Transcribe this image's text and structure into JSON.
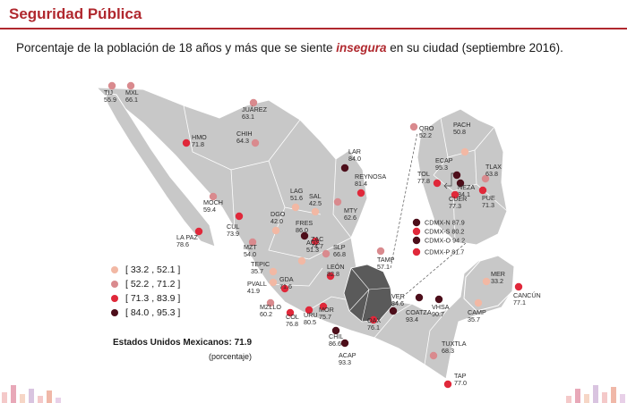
{
  "header": {
    "title": "Seguridad Pública"
  },
  "subtitle": {
    "before": "Porcentaje de la población de 18 años y más que se siente ",
    "emphasis": "insegura",
    "after": " en su ciudad (septiembre 2016)."
  },
  "colors": {
    "accent": "#b0282e",
    "c1": "#f2b8a4",
    "c2": "#d98a8e",
    "c3": "#e0283a",
    "c4": "#4d0e1a",
    "land": "#c8c8c8",
    "region": "#5a5a5a"
  },
  "legend": [
    {
      "label": "[ 33.2 , 52.1 ]",
      "color": "#f2b8a4"
    },
    {
      "label": "[ 52.2 , 71.2 ]",
      "color": "#d98a8e"
    },
    {
      "label": "[ 71.3 , 83.9 ]",
      "color": "#e0283a"
    },
    {
      "label": "[ 84.0 , 95.3 ]",
      "color": "#4d0e1a"
    }
  ],
  "national": {
    "label": "Estados Unidos Mexicanos: 71.9",
    "unit": "(porcentaje)"
  },
  "cities": [
    {
      "name": "TIJ",
      "value": "55.9",
      "cls": 2
    },
    {
      "name": "MXL",
      "value": "66.1",
      "cls": 2
    },
    {
      "name": "JUÁREZ",
      "value": "63.1",
      "cls": 2
    },
    {
      "name": "HMO",
      "value": "71.8",
      "cls": 3
    },
    {
      "name": "CHIH",
      "value": "64.3",
      "cls": 2
    },
    {
      "name": "LAR",
      "value": "84.0",
      "cls": 4
    },
    {
      "name": "REYNOSA",
      "value": "81.4",
      "cls": 3
    },
    {
      "name": "MOCH",
      "value": "59.4",
      "cls": 2
    },
    {
      "name": "LAG",
      "value": "51.6",
      "cls": 1
    },
    {
      "name": "SAL",
      "value": "42.5",
      "cls": 1
    },
    {
      "name": "DGO",
      "value": "42.0",
      "cls": 1
    },
    {
      "name": "MTY",
      "value": "62.6",
      "cls": 2
    },
    {
      "name": "CUL",
      "value": "73.9",
      "cls": 3
    },
    {
      "name": "FRES",
      "value": "86.0",
      "cls": 4
    },
    {
      "name": "LA PAZ",
      "value": "78.6",
      "cls": 3
    },
    {
      "name": "ZAC",
      "value": "74.7",
      "cls": 3
    },
    {
      "name": "MZT",
      "value": "54.0",
      "cls": 2
    },
    {
      "name": "SLP",
      "value": "66.8",
      "cls": 2
    },
    {
      "name": "TAMP",
      "value": "57.1",
      "cls": 2
    },
    {
      "name": "AGS",
      "value": "51.3",
      "cls": 1
    },
    {
      "name": "TEPIC",
      "value": "35.7",
      "cls": 1
    },
    {
      "name": "LEÓN",
      "value": "82.8",
      "cls": 3
    },
    {
      "name": "PVALL",
      "value": "41.9",
      "cls": 1
    },
    {
      "name": "GDA",
      "value": "71.6",
      "cls": 3
    },
    {
      "name": "MZLLO",
      "value": "60.2",
      "cls": 2
    },
    {
      "name": "COL",
      "value": "76.8",
      "cls": 3
    },
    {
      "name": "URU",
      "value": "80.5",
      "cls": 3
    },
    {
      "name": "MOR",
      "value": "75.7",
      "cls": 3
    },
    {
      "name": "CHIL",
      "value": "86.6",
      "cls": 4
    },
    {
      "name": "ACAP",
      "value": "93.3",
      "cls": 4
    },
    {
      "name": "OAX",
      "value": "76.1",
      "cls": 3
    },
    {
      "name": "VER",
      "value": "84.6",
      "cls": 4
    },
    {
      "name": "COATZA",
      "value": "93.4",
      "cls": 4
    },
    {
      "name": "VHSA",
      "value": "90.7",
      "cls": 4
    },
    {
      "name": "TUXTLA",
      "value": "68.3",
      "cls": 2
    },
    {
      "name": "TAP",
      "value": "77.0",
      "cls": 3
    },
    {
      "name": "CAMP",
      "value": "35.7",
      "cls": 1
    },
    {
      "name": "MER",
      "value": "33.2",
      "cls": 1
    },
    {
      "name": "CANCÚN",
      "value": "77.1",
      "cls": 3
    }
  ],
  "inset": [
    {
      "name": "QRO",
      "value": "52.2",
      "cls": 2
    },
    {
      "name": "PACH",
      "value": "50.8",
      "cls": 1
    },
    {
      "name": "ECAP",
      "value": "95.3",
      "cls": 4
    },
    {
      "name": "TLAX",
      "value": "63.8",
      "cls": 2
    },
    {
      "name": "TOL",
      "value": "77.8",
      "cls": 3
    },
    {
      "name": "NEZA",
      "value": "84.1",
      "cls": 4
    },
    {
      "name": "PUE",
      "value": "71.3",
      "cls": 3
    },
    {
      "name": "CUER",
      "value": "77.3",
      "cls": 3
    }
  ],
  "cdmx": [
    {
      "name": "CDMX-N",
      "value": "87.9",
      "cls": 4
    },
    {
      "name": "CDMX-S",
      "value": "80.2",
      "cls": 3
    },
    {
      "name": "CDMX-O",
      "value": "94.2",
      "cls": 4
    },
    {
      "name": "CDMX-P",
      "value": "81.7",
      "cls": 3
    }
  ]
}
